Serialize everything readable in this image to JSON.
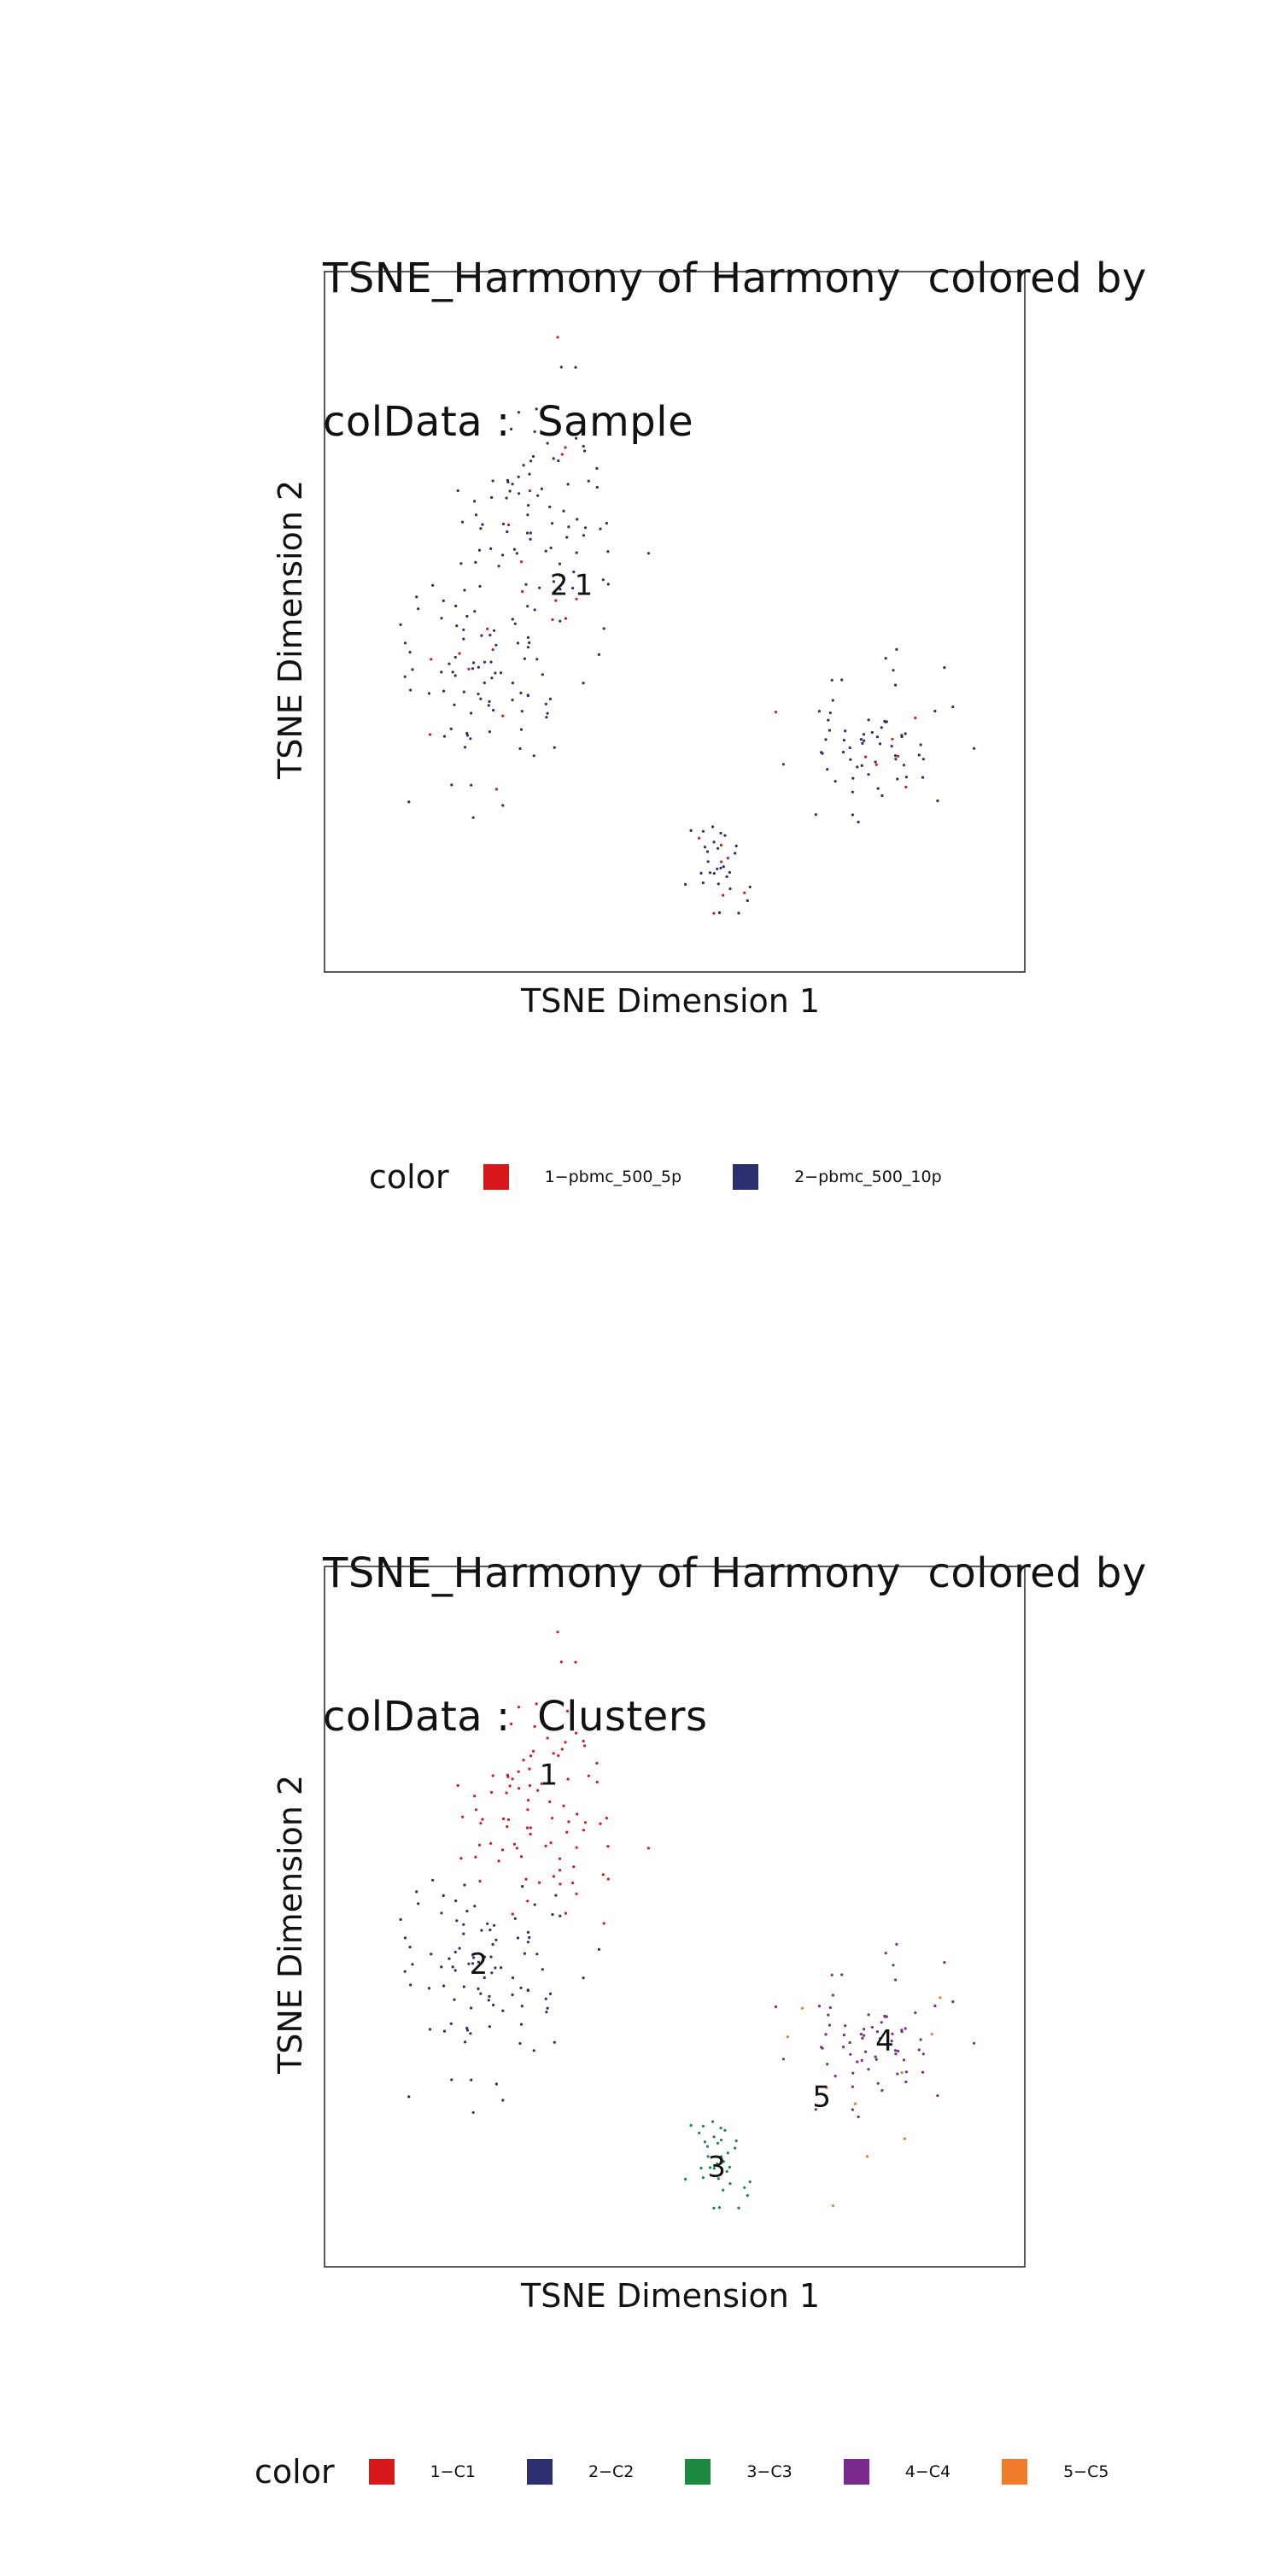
{
  "chart_data": [
    {
      "type": "scatter",
      "title_line1": "TSNE_Harmony of Harmony  colored by",
      "title_line2": "colData :  Sample",
      "xlabel": "TSNE Dimension 1",
      "ylabel": "TSNE Dimension 2",
      "grid": false,
      "legend": {
        "title": "color",
        "placement": "bottom",
        "entries": [
          {
            "name": "1−pbmc_500_5p",
            "color": "#d7191c"
          },
          {
            "name": "2−pbmc_500_10p",
            "color": "#2b2f6f"
          }
        ]
      },
      "cluster_labels": [
        {
          "text": "2",
          "x": 0.335,
          "y": 0.55
        },
        {
          "text": "1",
          "x": 0.37,
          "y": 0.55
        }
      ],
      "clusters": [
        {
          "name": "upper-left",
          "cx": 0.31,
          "cy": 0.66,
          "sx": 0.055,
          "sy": 0.085,
          "n": 90,
          "color": "#2b2f6f",
          "alt_color": "#d7191c"
        },
        {
          "name": "lower-left",
          "cx": 0.23,
          "cy": 0.44,
          "sx": 0.07,
          "sy": 0.085,
          "n": 95,
          "color": "#2b2f6f",
          "alt_color": "#d7191c"
        },
        {
          "name": "small",
          "cx": 0.56,
          "cy": 0.15,
          "sx": 0.018,
          "sy": 0.03,
          "n": 35,
          "color": "#2b2f6f",
          "alt_color": "#d7191c"
        },
        {
          "name": "right",
          "cx": 0.8,
          "cy": 0.33,
          "sx": 0.05,
          "sy": 0.05,
          "n": 70,
          "color": "#2b2f6f",
          "alt_color": "#d7191c"
        }
      ]
    },
    {
      "type": "scatter",
      "title_line1": "TSNE_Harmony of Harmony  colored by",
      "title_line2": "colData :  Clusters",
      "xlabel": "TSNE Dimension 1",
      "ylabel": "TSNE Dimension 2",
      "grid": false,
      "legend": {
        "title": "color",
        "placement": "bottom",
        "entries": [
          {
            "name": "1−C1",
            "color": "#d7191c"
          },
          {
            "name": "2−C2",
            "color": "#2b2f6f"
          },
          {
            "name": "3−C3",
            "color": "#1b8a3e"
          },
          {
            "name": "4−C4",
            "color": "#7b2a8d"
          },
          {
            "name": "5−C5",
            "color": "#f07b2a"
          }
        ]
      },
      "cluster_labels": [
        {
          "text": "1",
          "x": 0.32,
          "y": 0.7
        },
        {
          "text": "2",
          "x": 0.22,
          "y": 0.43
        },
        {
          "text": "3",
          "x": 0.56,
          "y": 0.14
        },
        {
          "text": "4",
          "x": 0.8,
          "y": 0.32
        },
        {
          "text": "5",
          "x": 0.71,
          "y": 0.24
        }
      ],
      "clusters": [
        {
          "name": "C1",
          "cx": 0.31,
          "cy": 0.66,
          "sx": 0.055,
          "sy": 0.085,
          "n": 90,
          "color": "#d7191c",
          "alt_color": "#d7191c"
        },
        {
          "name": "C2",
          "cx": 0.23,
          "cy": 0.44,
          "sx": 0.07,
          "sy": 0.085,
          "n": 95,
          "color": "#2b2f6f",
          "alt_color": "#2b2f6f"
        },
        {
          "name": "C3",
          "cx": 0.56,
          "cy": 0.15,
          "sx": 0.018,
          "sy": 0.03,
          "n": 35,
          "color": "#1b8a3e",
          "alt_color": "#1b8a3e"
        },
        {
          "name": "C4",
          "cx": 0.8,
          "cy": 0.33,
          "sx": 0.05,
          "sy": 0.05,
          "n": 70,
          "color": "#7b2a8d",
          "alt_color": "#7b2a8d"
        },
        {
          "name": "C5",
          "cx": 0.76,
          "cy": 0.25,
          "sx": 0.09,
          "sy": 0.1,
          "n": 10,
          "color": "#f07b2a",
          "alt_color": "#f07b2a"
        }
      ]
    }
  ]
}
